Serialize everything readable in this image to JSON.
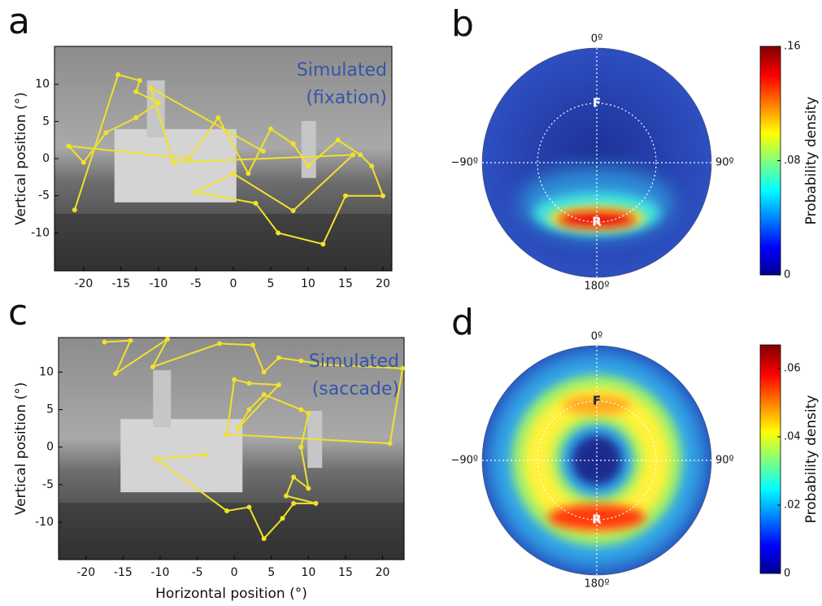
{
  "chart_data": [
    {
      "type": "line",
      "label": "a",
      "annotation": [
        "Simulated",
        "(fixation)"
      ],
      "ylabel": "Vertical position (°)",
      "color": "#f2e12a",
      "xlim": [
        -23.9,
        21.2
      ],
      "ylim": [
        -15.1,
        15.1
      ],
      "xticks": [
        -20,
        -15,
        -10,
        -5,
        0,
        5,
        10,
        15,
        20
      ],
      "yticks": [
        -10,
        -5,
        0,
        5,
        10
      ],
      "x": [
        -21.2,
        -15.4,
        -12.5,
        -13,
        -10,
        -13,
        -17,
        -20,
        -22,
        -6,
        -2,
        2,
        5,
        8,
        10,
        14,
        17,
        18.5,
        20,
        15,
        12,
        6,
        3,
        -5,
        0,
        8,
        16,
        -8,
        -11,
        4
      ],
      "values": [
        -6.9,
        11.3,
        10.5,
        9,
        7.5,
        5.5,
        3.5,
        -0.5,
        1.7,
        0,
        5.5,
        -2,
        4,
        2,
        -1,
        2.5,
        0.5,
        -1,
        -5,
        -5,
        -11.5,
        -10,
        -6,
        -4.5,
        -2,
        -7,
        0.5,
        -0.5,
        9.5,
        1
      ]
    },
    {
      "type": "heatmap",
      "label": "b",
      "angle_labels": [
        "0º",
        "90º",
        "180º",
        "−90º"
      ],
      "markers": [
        "F",
        "R"
      ],
      "colorbar": {
        "label": "Probability density",
        "ylim": [
          0,
          0.16
        ],
        "yticks": [
          0,
          {
            "value": 0.08,
            "label": ".08"
          },
          {
            "value": 0.16,
            "label": ".16"
          }
        ]
      }
    },
    {
      "type": "line",
      "label": "c",
      "annotation": [
        "Simulated",
        "(saccade)"
      ],
      "xlabel": "Horizontal position (°)",
      "ylabel": "Vertical position (°)",
      "color": "#f2e12a",
      "xlim": [
        -23.7,
        22.9
      ],
      "ylim": [
        -15,
        14.6
      ],
      "xticks": [
        -20,
        -15,
        -10,
        -5,
        0,
        5,
        10,
        15,
        20
      ],
      "yticks": [
        -10,
        -5,
        0,
        5,
        10
      ],
      "x": [
        -17.5,
        -14,
        -16,
        -9,
        -11,
        -2,
        2.5,
        4,
        6,
        9,
        12,
        22.7,
        21,
        -1,
        0,
        2,
        6,
        0.5,
        2,
        4,
        9,
        10,
        9,
        10,
        8,
        7,
        11,
        8,
        6.5,
        4,
        2,
        -1,
        -10.5,
        -4
      ],
      "values": [
        14,
        14.2,
        9.8,
        14.4,
        10.7,
        13.8,
        13.6,
        10,
        11.9,
        11.5,
        11,
        10.5,
        0.5,
        1.7,
        9,
        8.5,
        8.3,
        2.5,
        5,
        7,
        5,
        4.5,
        0,
        -5.5,
        -4,
        -6.5,
        -7.5,
        -7.5,
        -9.5,
        -12.2,
        -8,
        -8.5,
        -1.6,
        -1
      ]
    },
    {
      "type": "heatmap",
      "label": "d",
      "angle_labels": [
        "0º",
        "90º",
        "180º",
        "−90º"
      ],
      "markers": [
        "F",
        "R"
      ],
      "colorbar": {
        "label": "Probability density",
        "ylim": [
          0,
          0.0669
        ],
        "yticks": [
          0,
          {
            "value": 0.02,
            "label": ".02"
          },
          {
            "value": 0.04,
            "label": ".04"
          },
          {
            "value": 0.06,
            "label": ".06"
          }
        ]
      }
    }
  ]
}
